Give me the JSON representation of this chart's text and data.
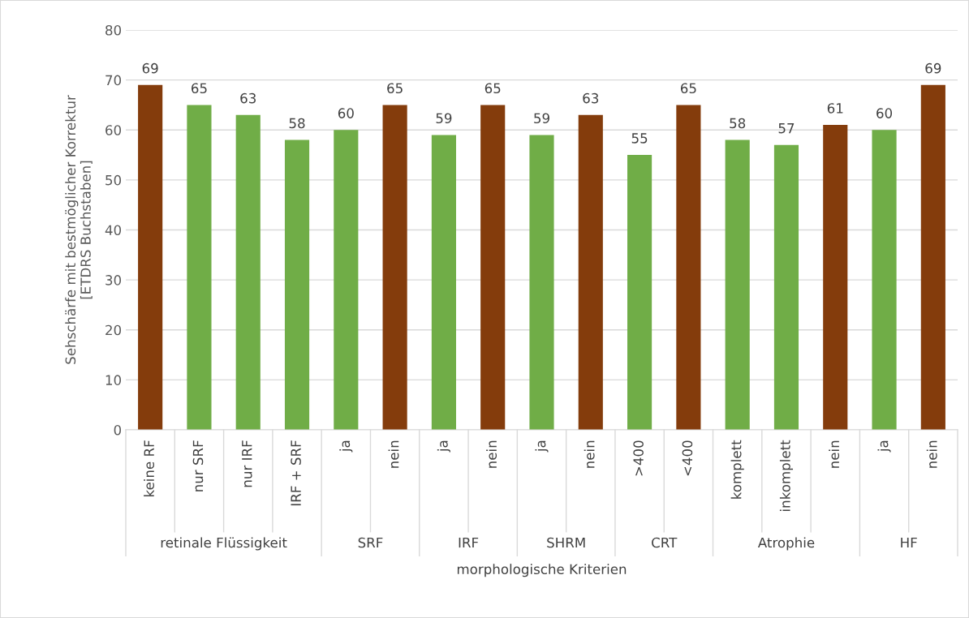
{
  "chart_data": {
    "type": "bar",
    "categories": [
      "keine RF",
      "nur SRF",
      "nur IRF",
      "IRF + SRF",
      "ja",
      "nein",
      "ja",
      "nein",
      "ja",
      "nein",
      ">400",
      "<400",
      "komplett",
      "inkomplett",
      "nein",
      "ja",
      "nein"
    ],
    "values": [
      69,
      65,
      63,
      58,
      60,
      65,
      59,
      65,
      59,
      63,
      55,
      65,
      58,
      57,
      61,
      60,
      69
    ],
    "colors": [
      "#843c0c",
      "#70ad47",
      "#70ad47",
      "#70ad47",
      "#70ad47",
      "#843c0c",
      "#70ad47",
      "#843c0c",
      "#70ad47",
      "#843c0c",
      "#70ad47",
      "#843c0c",
      "#70ad47",
      "#70ad47",
      "#843c0c",
      "#70ad47",
      "#843c0c"
    ],
    "xlabel": "morphologische Kriterien",
    "ylabel": "Sehschärfe mit bestmöglicher Korrektur\n[ETDRS Buchstaben]",
    "ylim": [
      0,
      80
    ],
    "yticks": [
      0,
      10,
      20,
      30,
      40,
      50,
      60,
      70,
      80
    ],
    "grid": "y",
    "data_labels": true,
    "annotations": [
      "retinale Flüssigkeit",
      "SRF",
      "IRF",
      "SHRM",
      "CRT",
      "Atrophie",
      "HF"
    ]
  }
}
